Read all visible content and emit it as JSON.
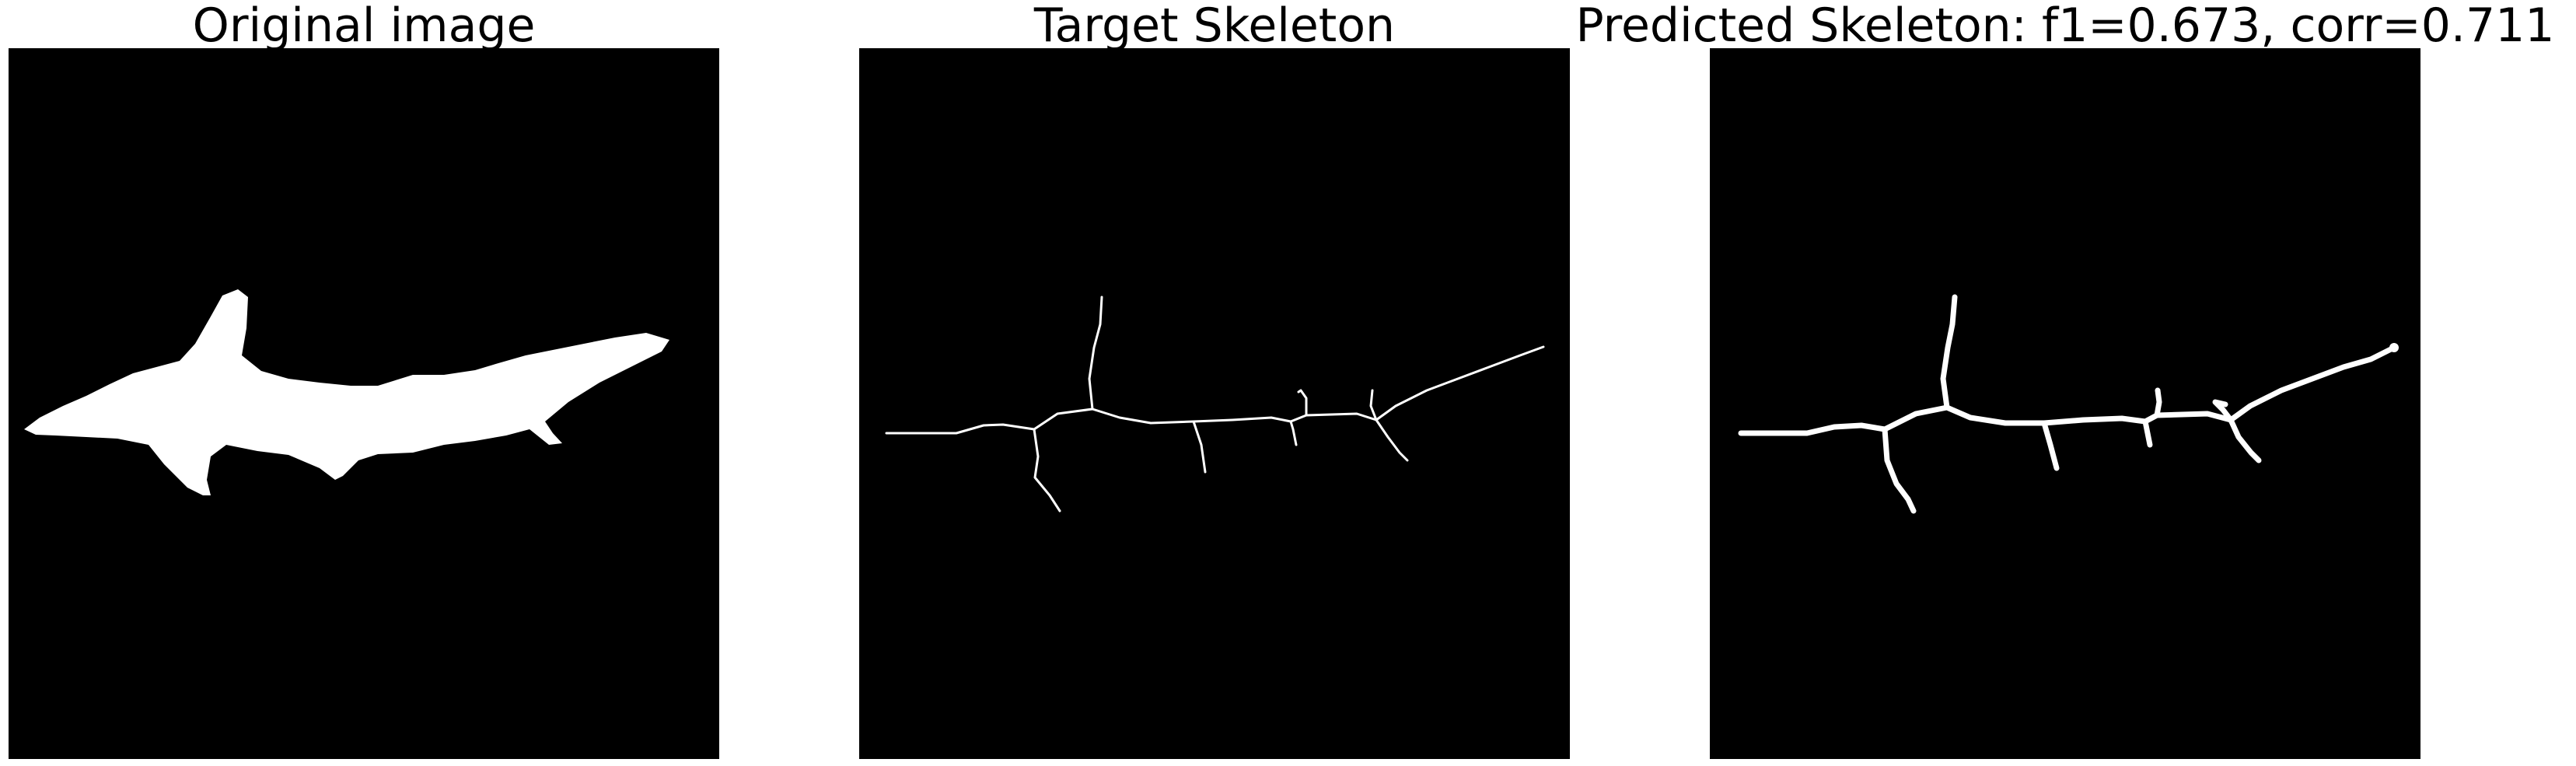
{
  "panels": [
    {
      "title": "Original image",
      "content": "filled-silhouette",
      "background_color": "#000000",
      "foreground_color": "#ffffff"
    },
    {
      "title": "Target Skeleton",
      "content": "thin-skeleton",
      "background_color": "#000000",
      "foreground_color": "#ffffff"
    },
    {
      "title": "Predicted Skeleton: f1=0.673, corr=0.711",
      "content": "thick-skeleton",
      "background_color": "#000000",
      "foreground_color": "#ffffff"
    }
  ]
}
